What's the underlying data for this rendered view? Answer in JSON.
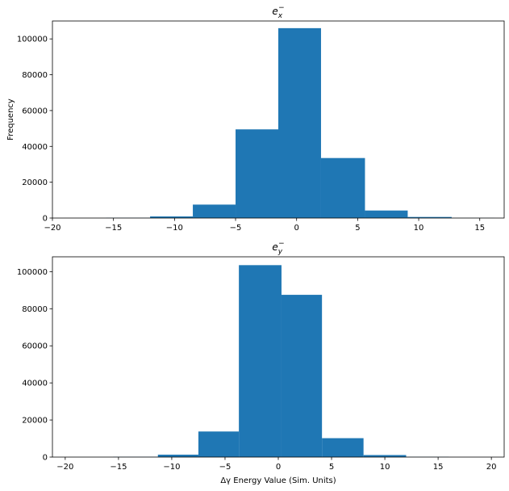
{
  "chart_data": [
    {
      "type": "bar",
      "title": "e_x^-",
      "title_main": "e",
      "title_sub": "x",
      "title_sup": "−",
      "xlabel": "",
      "ylabel": "Frequency",
      "xlim": [
        -20.0,
        17.0
      ],
      "ylim": [
        0,
        110000
      ],
      "xticks": [
        -20,
        -15,
        -10,
        -5,
        0,
        5,
        10,
        15
      ],
      "yticks": [
        0,
        20000,
        40000,
        60000,
        80000,
        100000
      ],
      "bar_color": "#1f77b4",
      "bins": [
        {
          "x0": -19.1,
          "x1": -15.6,
          "value": 20
        },
        {
          "x0": -15.6,
          "x1": -12.0,
          "value": 120
        },
        {
          "x0": -12.0,
          "x1": -8.5,
          "value": 900
        },
        {
          "x0": -8.5,
          "x1": -5.0,
          "value": 7500
        },
        {
          "x0": -5.0,
          "x1": -1.5,
          "value": 49500
        },
        {
          "x0": -1.5,
          "x1": 2.0,
          "value": 106000
        },
        {
          "x0": 2.0,
          "x1": 5.6,
          "value": 33500
        },
        {
          "x0": 5.6,
          "x1": 9.1,
          "value": 4200
        },
        {
          "x0": 9.1,
          "x1": 12.7,
          "value": 600
        },
        {
          "x0": 12.7,
          "x1": 16.2,
          "value": 60
        }
      ]
    },
    {
      "type": "bar",
      "title": "e_y^-",
      "title_main": "e",
      "title_sub": "y",
      "title_sup": "−",
      "xlabel": "Δγ Energy Value (Sim. Units)",
      "ylabel": "",
      "xlim": [
        -21.2,
        21.2
      ],
      "ylim": [
        0,
        108000
      ],
      "xticks": [
        -20,
        -15,
        -10,
        -5,
        0,
        5,
        10,
        15,
        20
      ],
      "yticks": [
        0,
        20000,
        40000,
        60000,
        80000,
        100000
      ],
      "bar_color": "#1f77b4",
      "bins": [
        {
          "x0": -19.6,
          "x1": -15.5,
          "value": 20
        },
        {
          "x0": -15.5,
          "x1": -11.3,
          "value": 120
        },
        {
          "x0": -11.3,
          "x1": -7.5,
          "value": 1300
        },
        {
          "x0": -7.5,
          "x1": -3.7,
          "value": 13800
        },
        {
          "x0": -3.7,
          "x1": 0.3,
          "value": 103500
        },
        {
          "x0": 0.3,
          "x1": 4.1,
          "value": 87500
        },
        {
          "x0": 4.1,
          "x1": 8.0,
          "value": 10200
        },
        {
          "x0": 8.0,
          "x1": 12.0,
          "value": 1100
        },
        {
          "x0": 12.0,
          "x1": 16.0,
          "value": 100
        },
        {
          "x0": 16.0,
          "x1": 20.0,
          "value": 10
        }
      ]
    }
  ]
}
